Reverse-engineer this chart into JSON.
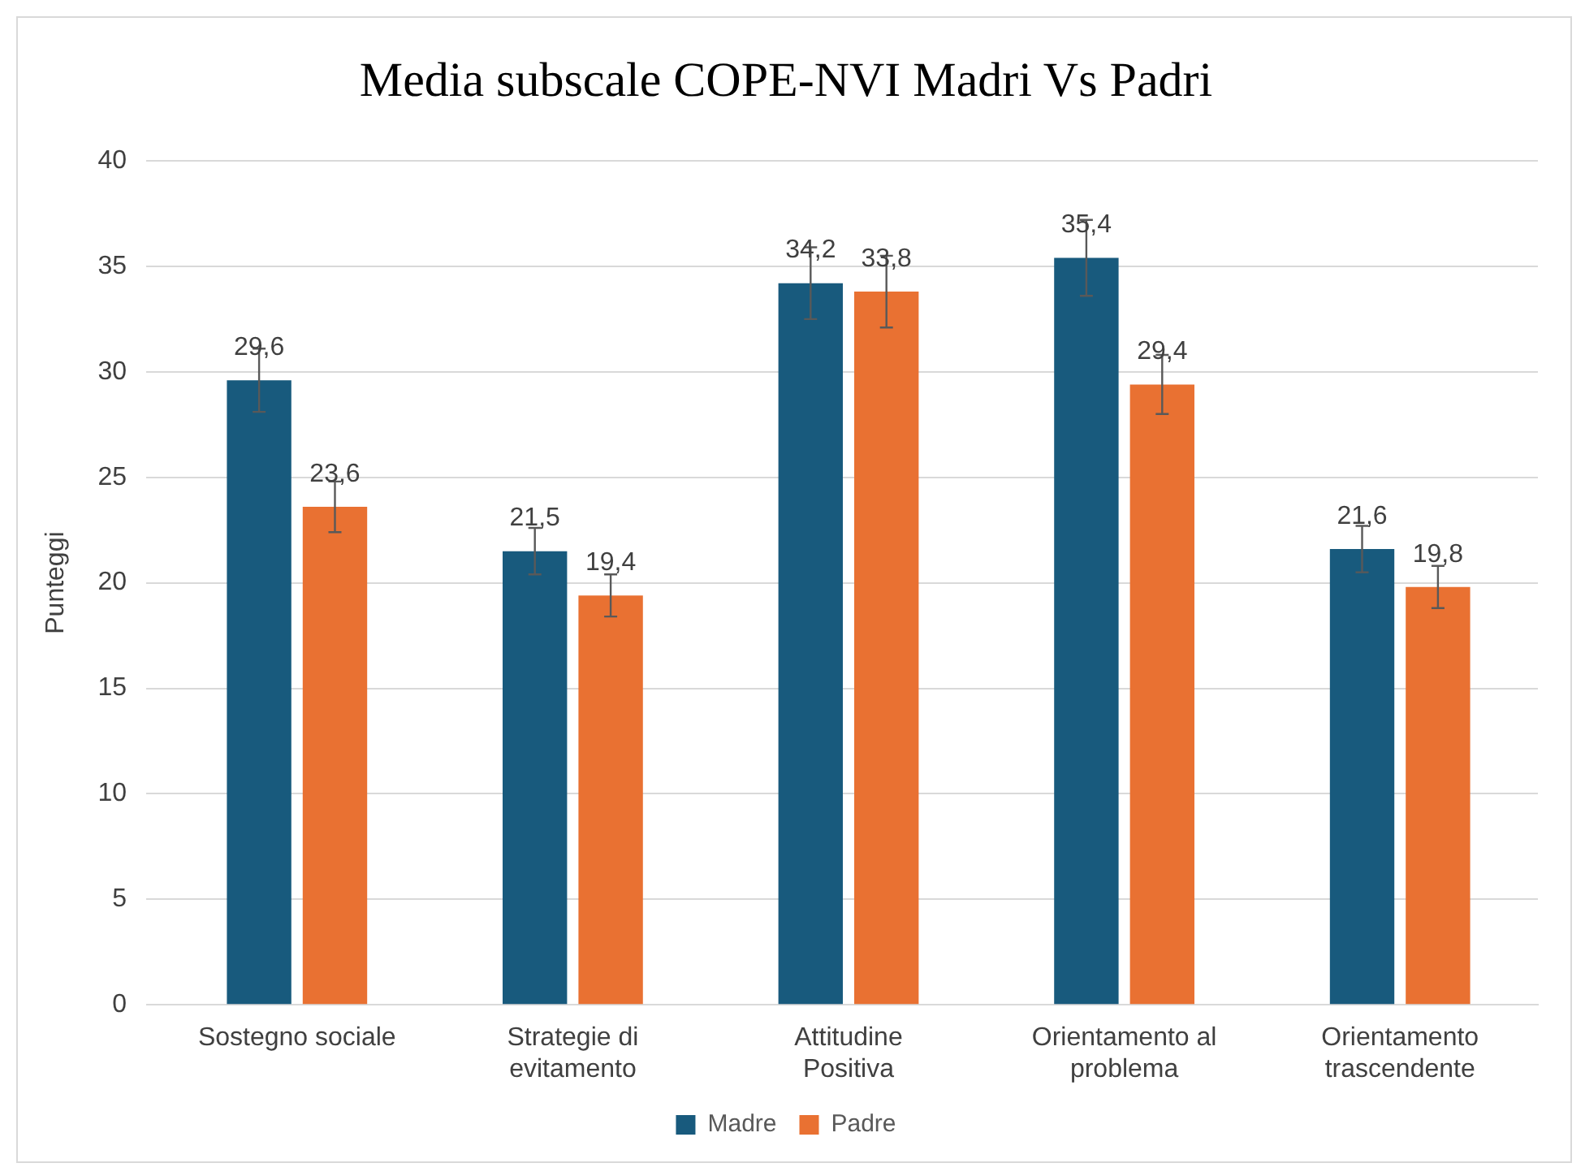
{
  "chart_data": {
    "type": "bar",
    "title": "Media subscale COPE-NVI Madri Vs Padri",
    "ylabel": "Punteggi",
    "categories": [
      "Sostegno sociale",
      "Strategie di evitamento",
      "Attitudine Positiva",
      "Orientamento al problema",
      "Orientamento trascendente"
    ],
    "series": [
      {
        "name": "Madre",
        "color": "#185a7d",
        "values": [
          29.6,
          21.5,
          34.2,
          35.4,
          21.6
        ],
        "errors": [
          1.5,
          1.1,
          1.7,
          1.8,
          1.1
        ],
        "value_labels": [
          "29,6",
          "21,5",
          "34,2",
          "35,4",
          "21,6"
        ]
      },
      {
        "name": "Padre",
        "color": "#e97132",
        "values": [
          23.6,
          19.4,
          33.8,
          29.4,
          19.8
        ],
        "errors": [
          1.2,
          1.0,
          1.7,
          1.4,
          1.0
        ],
        "value_labels": [
          "23,6",
          "19,4",
          "33,8",
          "29,4",
          "19,8"
        ]
      }
    ],
    "ylim": [
      0,
      40
    ],
    "yticks": [
      0,
      5,
      10,
      15,
      20,
      25,
      30,
      35,
      40
    ],
    "grid": "y",
    "legend": "bottom"
  }
}
